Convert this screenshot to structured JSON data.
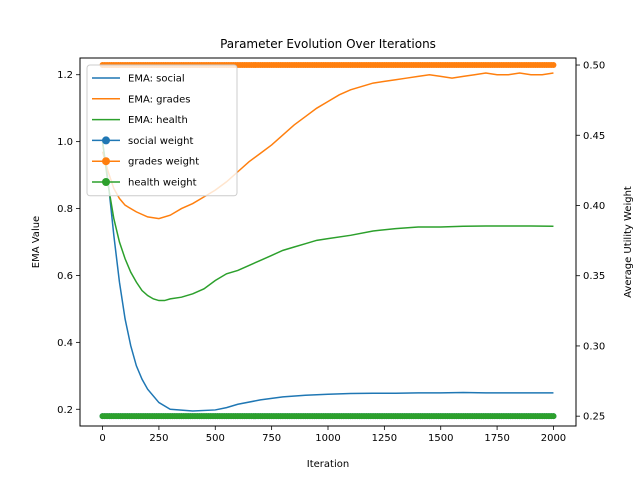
{
  "chart_data": {
    "type": "line",
    "title": "Parameter Evolution Over Iterations",
    "xlabel": "Iteration",
    "ylabel": "EMA Value",
    "ylabel_right": "Average Utility Weight",
    "xlim": [
      -100,
      2100
    ],
    "ylim": [
      0.15,
      1.25
    ],
    "ylim_right": [
      0.243,
      0.505
    ],
    "xticks": [
      0,
      250,
      500,
      750,
      1000,
      1250,
      1500,
      1750,
      2000
    ],
    "yticks": [
      0.2,
      0.4,
      0.6,
      0.8,
      1.0,
      1.2
    ],
    "yticks_right": [
      0.25,
      0.3,
      0.35,
      0.4,
      0.45,
      0.5
    ],
    "grid": false,
    "legend_position": "top-left",
    "series": [
      {
        "name": "EMA: social",
        "axis": "left",
        "color": "#1f77b4",
        "marker": "none",
        "x": [
          0,
          25,
          50,
          75,
          100,
          125,
          150,
          175,
          200,
          250,
          300,
          400,
          500,
          550,
          600,
          700,
          800,
          900,
          1000,
          1100,
          1200,
          1300,
          1400,
          1500,
          1600,
          1700,
          1800,
          1900,
          2000
        ],
        "y": [
          1.0,
          0.88,
          0.72,
          0.58,
          0.47,
          0.39,
          0.33,
          0.29,
          0.26,
          0.22,
          0.2,
          0.195,
          0.198,
          0.205,
          0.215,
          0.228,
          0.237,
          0.242,
          0.245,
          0.247,
          0.248,
          0.248,
          0.249,
          0.249,
          0.25,
          0.249,
          0.249,
          0.249,
          0.249
        ]
      },
      {
        "name": "EMA: grades",
        "axis": "left",
        "color": "#ff7f0e",
        "marker": "none",
        "x": [
          0,
          25,
          50,
          75,
          100,
          150,
          200,
          250,
          300,
          350,
          400,
          450,
          500,
          550,
          600,
          650,
          700,
          750,
          800,
          850,
          900,
          950,
          1000,
          1050,
          1100,
          1150,
          1200,
          1250,
          1300,
          1350,
          1400,
          1450,
          1500,
          1550,
          1600,
          1650,
          1700,
          1750,
          1800,
          1850,
          1900,
          1950,
          2000
        ],
        "y": [
          0.97,
          0.91,
          0.86,
          0.83,
          0.81,
          0.79,
          0.775,
          0.77,
          0.78,
          0.8,
          0.815,
          0.835,
          0.855,
          0.88,
          0.91,
          0.94,
          0.965,
          0.99,
          1.02,
          1.05,
          1.075,
          1.1,
          1.12,
          1.14,
          1.155,
          1.165,
          1.175,
          1.18,
          1.185,
          1.19,
          1.195,
          1.2,
          1.195,
          1.19,
          1.195,
          1.2,
          1.205,
          1.2,
          1.2,
          1.205,
          1.2,
          1.2,
          1.205
        ]
      },
      {
        "name": "EMA: health",
        "axis": "left",
        "color": "#2ca02c",
        "marker": "none",
        "x": [
          0,
          25,
          50,
          75,
          100,
          125,
          150,
          175,
          200,
          225,
          250,
          275,
          300,
          350,
          400,
          450,
          500,
          550,
          600,
          650,
          700,
          750,
          800,
          850,
          900,
          950,
          1000,
          1100,
          1200,
          1300,
          1400,
          1500,
          1600,
          1700,
          1800,
          1900,
          2000
        ],
        "y": [
          1.0,
          0.87,
          0.77,
          0.7,
          0.65,
          0.61,
          0.58,
          0.555,
          0.54,
          0.53,
          0.525,
          0.525,
          0.53,
          0.535,
          0.545,
          0.56,
          0.585,
          0.605,
          0.615,
          0.63,
          0.645,
          0.66,
          0.675,
          0.685,
          0.695,
          0.705,
          0.71,
          0.72,
          0.733,
          0.74,
          0.745,
          0.745,
          0.747,
          0.748,
          0.748,
          0.748,
          0.747
        ]
      },
      {
        "name": "social weight",
        "axis": "right",
        "color": "#1f77b4",
        "marker": "o",
        "x": [
          0,
          2000
        ],
        "y": [
          0.25,
          0.25
        ]
      },
      {
        "name": "grades weight",
        "axis": "right",
        "color": "#ff7f0e",
        "marker": "o",
        "x": [
          0,
          2000
        ],
        "y": [
          0.5,
          0.5
        ]
      },
      {
        "name": "health weight",
        "axis": "right",
        "color": "#2ca02c",
        "marker": "o",
        "x": [
          0,
          2000
        ],
        "y": [
          0.25,
          0.25
        ]
      }
    ]
  }
}
